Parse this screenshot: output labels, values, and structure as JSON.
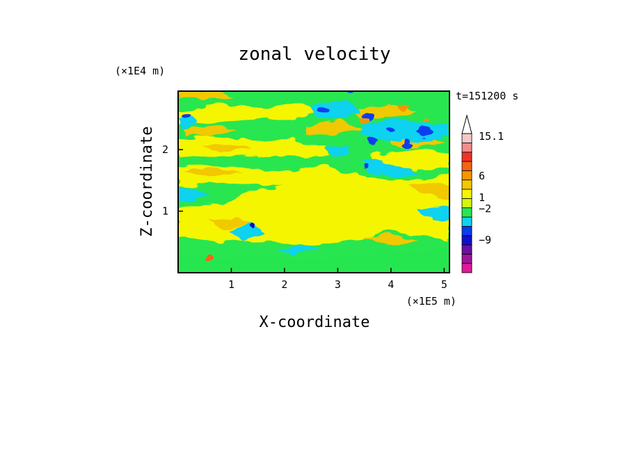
{
  "chart_data": {
    "type": "heatmap",
    "title": "zonal velocity",
    "xlabel": "X-coordinate",
    "ylabel": "Z-coordinate",
    "x_unit": "(×1E5 m)",
    "y_unit": "(×1E4 m)",
    "time_label": "t=151200 s",
    "xlim": [
      0,
      5.1
    ],
    "ylim": [
      0,
      2.95
    ],
    "x_ticks": [
      "1",
      "2",
      "3",
      "4",
      "5"
    ],
    "y_ticks": [
      "1",
      "2"
    ],
    "colorbar": {
      "labels": [
        "15.1",
        "6",
        "1",
        "−2",
        "−9"
      ],
      "colors": [
        "#e0189a",
        "#a0149c",
        "#6a0fa0",
        "#1010c8",
        "#0a3cf0",
        "#10d2f0",
        "#28e650",
        "#d2f514",
        "#f5f500",
        "#f2c800",
        "#f59600",
        "#f56414",
        "#f03228",
        "#f58c8c",
        "#f5c8c8"
      ],
      "extend_top": true
    }
  }
}
